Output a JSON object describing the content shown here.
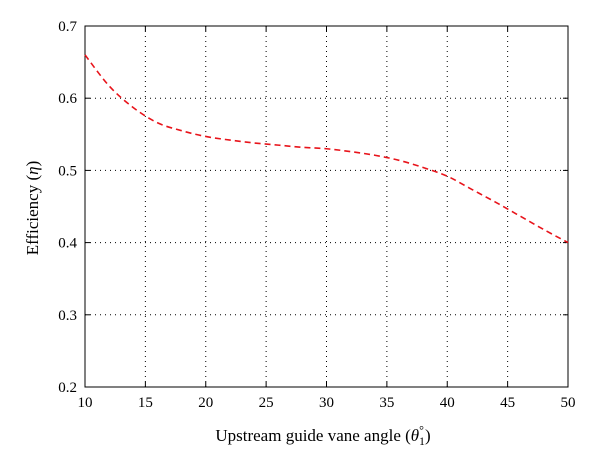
{
  "chart_data": {
    "type": "line",
    "title": "",
    "xlabel_main": "Upstream guide vane angle (",
    "xlabel_symbol": "θ",
    "xlabel_sup": "°",
    "xlabel_sub": "1",
    "xlabel_close": ")",
    "ylabel_main": "Efficiency (",
    "ylabel_symbol": "η",
    "ylabel_close": ")",
    "xlim": [
      10,
      50
    ],
    "ylim": [
      0.2,
      0.7
    ],
    "xticks": [
      10,
      15,
      20,
      25,
      30,
      35,
      40,
      45,
      50
    ],
    "yticks": [
      0.2,
      0.3,
      0.4,
      0.5,
      0.6,
      0.7
    ],
    "xtick_labels": [
      "10",
      "15",
      "20",
      "25",
      "30",
      "35",
      "40",
      "45",
      "50"
    ],
    "ytick_labels": [
      "0.2",
      "0.3",
      "0.4",
      "0.5",
      "0.6",
      "0.7"
    ],
    "grid": true,
    "series": [
      {
        "color": "#e8141b",
        "style": "dashed",
        "x": [
          10,
          12,
          14,
          16,
          18,
          20,
          22,
          24,
          26,
          28,
          30,
          32,
          34,
          36,
          38,
          40,
          42,
          44,
          46,
          48,
          50
        ],
        "y": [
          0.66,
          0.617,
          0.587,
          0.566,
          0.555,
          0.547,
          0.542,
          0.538,
          0.535,
          0.532,
          0.53,
          0.526,
          0.521,
          0.514,
          0.504,
          0.492,
          0.474,
          0.456,
          0.437,
          0.418,
          0.4
        ]
      }
    ]
  }
}
